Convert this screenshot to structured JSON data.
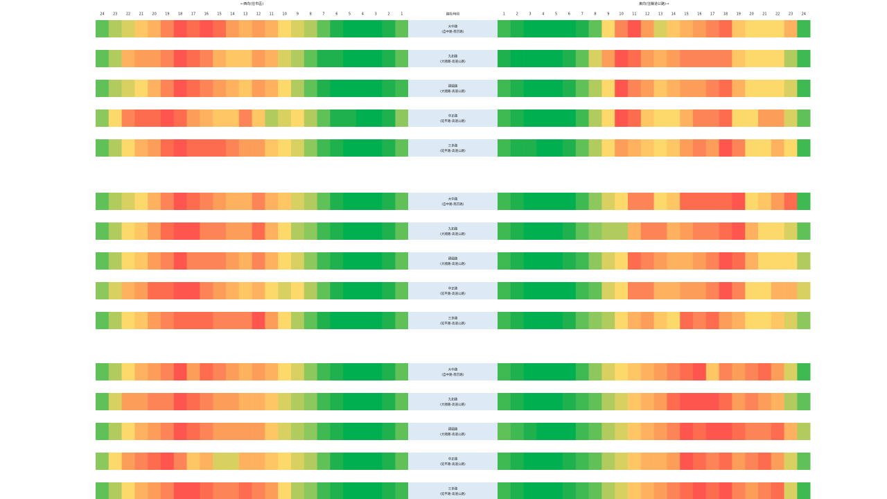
{
  "chart_data": {
    "type": "heatmap",
    "title": "",
    "left_header": "←西向(往市區)",
    "right_header": "東向(往縣道公路)→",
    "center_header": "路段/時段",
    "left_hours": [
      "24",
      "23",
      "22",
      "21",
      "20",
      "19",
      "18",
      "17",
      "16",
      "15",
      "14",
      "13",
      "12",
      "11",
      "10",
      "9",
      "8",
      "7",
      "6",
      "5",
      "4",
      "3",
      "2",
      "1"
    ],
    "right_hours": [
      "1",
      "2",
      "3",
      "4",
      "5",
      "6",
      "7",
      "8",
      "9",
      "10",
      "11",
      "12",
      "13",
      "14",
      "15",
      "16",
      "17",
      "18",
      "19",
      "20",
      "21",
      "22",
      "23",
      "24"
    ],
    "colors": {
      "0": "#00b050",
      "1": "#1fb14e",
      "2": "#3fba52",
      "3": "#5fc158",
      "4": "#8cc85e",
      "5": "#b2cb5e",
      "6": "#d9d062",
      "7": "#fdd86a",
      "8": "#fec664",
      "9": "#feb260",
      "10": "#fd9d5a",
      "11": "#fd8456",
      "12": "#fe6c50",
      "13": "#fe554e"
    },
    "groups": [
      {
        "rows": [
          {
            "name": "大中路",
            "sub": "(自中路-南京路)",
            "west": [
              3,
              5,
              6,
              8,
              9,
              11,
              13,
              12,
              13,
              12,
              10,
              9,
              10,
              9,
              7,
              6,
              5,
              3,
              1,
              0,
              0,
              0,
              1,
              3
            ],
            "east": [
              2,
              1,
              0,
              0,
              0,
              0,
              1,
              3,
              7,
              11,
              13,
              10,
              6,
              8,
              9,
              10,
              11,
              12,
              8,
              7,
              7,
              7,
              9,
              2
            ]
          },
          {
            "name": "九如路",
            "sub": "(大順路-高速公路)",
            "west": [
              3,
              5,
              9,
              10,
              10,
              11,
              13,
              12,
              11,
              9,
              8,
              8,
              10,
              9,
              6,
              5,
              3,
              1,
              1,
              0,
              0,
              0,
              1,
              3
            ],
            "east": [
              1,
              0,
              0,
              0,
              0,
              1,
              3,
              6,
              10,
              13,
              12,
              10,
              9,
              10,
              11,
              11,
              11,
              11,
              8,
              7,
              7,
              7,
              5,
              2
            ]
          },
          {
            "name": "建國路",
            "sub": "(大順路-高速公路)",
            "west": [
              3,
              5,
              6,
              7,
              9,
              11,
              13,
              12,
              11,
              10,
              9,
              8,
              10,
              9,
              7,
              5,
              3,
              1,
              0,
              0,
              0,
              0,
              1,
              2
            ],
            "east": [
              2,
              1,
              0,
              0,
              0,
              1,
              3,
              5,
              7,
              13,
              11,
              10,
              8,
              9,
              10,
              10,
              11,
              12,
              9,
              7,
              7,
              7,
              6,
              2
            ]
          },
          {
            "name": "中正路",
            "sub": "(延平路-高速公路)",
            "west": [
              4,
              7,
              11,
              12,
              12,
              13,
              12,
              10,
              9,
              8,
              8,
              11,
              8,
              5,
              6,
              7,
              5,
              3,
              1,
              1,
              0,
              0,
              1,
              4
            ],
            "east": [
              2,
              1,
              0,
              0,
              0,
              0,
              2,
              5,
              7,
              13,
              12,
              8,
              7,
              7,
              9,
              11,
              11,
              12,
              7,
              7,
              10,
              10,
              6,
              3
            ]
          },
          {
            "name": "三多路",
            "sub": "(延平路-高速公路)",
            "west": [
              3,
              5,
              7,
              9,
              10,
              12,
              13,
              12,
              12,
              12,
              11,
              10,
              10,
              8,
              7,
              6,
              4,
              2,
              1,
              0,
              0,
              0,
              1,
              3
            ],
            "east": [
              2,
              1,
              1,
              0,
              0,
              1,
              3,
              5,
              7,
              10,
              9,
              8,
              7,
              8,
              10,
              11,
              10,
              13,
              11,
              7,
              7,
              9,
              7,
              2
            ]
          }
        ]
      },
      {
        "rows": [
          {
            "name": "大中路",
            "sub": "(自中路-南京路)",
            "west": [
              3,
              5,
              6,
              7,
              9,
              11,
              13,
              12,
              11,
              10,
              9,
              9,
              11,
              9,
              8,
              6,
              5,
              3,
              1,
              0,
              0,
              0,
              1,
              3
            ],
            "east": [
              2,
              1,
              0,
              0,
              0,
              0,
              2,
              4,
              6,
              7,
              11,
              11,
              7,
              8,
              12,
              12,
              12,
              12,
              13,
              7,
              8,
              10,
              12,
              2
            ]
          },
          {
            "name": "九如路",
            "sub": "(大順路-高速公路)",
            "west": [
              3,
              5,
              7,
              8,
              10,
              12,
              13,
              13,
              11,
              11,
              10,
              10,
              12,
              9,
              7,
              5,
              4,
              2,
              1,
              0,
              0,
              0,
              1,
              3
            ],
            "east": [
              2,
              1,
              0,
              0,
              0,
              1,
              3,
              4,
              5,
              5,
              9,
              11,
              11,
              9,
              10,
              11,
              11,
              12,
              13,
              9,
              7,
              7,
              6,
              3
            ]
          },
          {
            "name": "建國路",
            "sub": "(大順路-高速公路)",
            "west": [
              3,
              5,
              7,
              8,
              10,
              11,
              13,
              11,
              11,
              11,
              10,
              9,
              11,
              9,
              7,
              6,
              4,
              2,
              1,
              0,
              0,
              0,
              1,
              3
            ],
            "east": [
              2,
              1,
              0,
              0,
              0,
              1,
              2,
              4,
              6,
              7,
              12,
              11,
              10,
              9,
              9,
              10,
              11,
              13,
              12,
              9,
              7,
              7,
              7,
              5
            ]
          },
          {
            "name": "中正路",
            "sub": "(延平路-高速公路)",
            "west": [
              4,
              6,
              9,
              10,
              12,
              12,
              13,
              13,
              11,
              10,
              9,
              8,
              9,
              7,
              6,
              7,
              5,
              3,
              1,
              0,
              0,
              0,
              1,
              3
            ],
            "east": [
              2,
              1,
              0,
              0,
              0,
              0,
              2,
              3,
              6,
              7,
              11,
              11,
              9,
              9,
              10,
              10,
              11,
              13,
              11,
              7,
              7,
              9,
              9,
              6
            ]
          },
          {
            "name": "三多路",
            "sub": "(延平路-高速公路)",
            "west": [
              3,
              5,
              7,
              8,
              10,
              11,
              12,
              12,
              12,
              11,
              11,
              11,
              13,
              10,
              7,
              5,
              3,
              1,
              0,
              0,
              0,
              0,
              1,
              3
            ],
            "east": [
              2,
              1,
              0,
              0,
              0,
              1,
              3,
              4,
              5,
              7,
              9,
              10,
              8,
              7,
              12,
              11,
              12,
              10,
              9,
              7,
              7,
              8,
              6,
              4
            ]
          }
        ]
      },
      {
        "rows": [
          {
            "name": "大中路",
            "sub": "(自中路-南京路)",
            "west": [
              3,
              5,
              7,
              9,
              10,
              11,
              13,
              10,
              12,
              11,
              10,
              9,
              10,
              9,
              7,
              6,
              4,
              2,
              1,
              0,
              0,
              0,
              1,
              3
            ],
            "east": [
              2,
              1,
              0,
              0,
              0,
              0,
              2,
              4,
              6,
              7,
              8,
              9,
              10,
              11,
              12,
              13,
              8,
              11,
              10,
              11,
              12,
              10,
              6,
              2
            ]
          },
          {
            "name": "九如路",
            "sub": "(大順路-高速公路)",
            "west": [
              3,
              6,
              10,
              10,
              11,
              11,
              13,
              12,
              11,
              10,
              10,
              9,
              9,
              8,
              6,
              5,
              4,
              2,
              1,
              0,
              0,
              0,
              1,
              3
            ],
            "east": [
              2,
              1,
              0,
              0,
              0,
              1,
              2,
              3,
              5,
              6,
              8,
              9,
              10,
              12,
              13,
              13,
              13,
              12,
              10,
              11,
              10,
              9,
              5,
              3
            ]
          },
          {
            "name": "建國路",
            "sub": "(大順路-高速公路)",
            "west": [
              3,
              5,
              7,
              9,
              10,
              11,
              13,
              12,
              11,
              10,
              10,
              10,
              10,
              8,
              6,
              5,
              4,
              2,
              1,
              0,
              0,
              0,
              1,
              3
            ],
            "east": [
              3,
              2,
              1,
              0,
              0,
              0,
              2,
              3,
              5,
              6,
              8,
              9,
              10,
              11,
              13,
              12,
              13,
              13,
              12,
              11,
              11,
              12,
              9,
              5
            ]
          },
          {
            "name": "中正路",
            "sub": "(延平路-高速公路)",
            "west": [
              4,
              7,
              10,
              11,
              12,
              13,
              11,
              8,
              9,
              6,
              6,
              9,
              9,
              8,
              7,
              6,
              5,
              3,
              1,
              0,
              0,
              0,
              1,
              3
            ],
            "east": [
              2,
              1,
              0,
              0,
              0,
              1,
              2,
              3,
              5,
              6,
              8,
              9,
              9,
              10,
              13,
              12,
              11,
              12,
              10,
              11,
              12,
              10,
              6,
              3
            ]
          },
          {
            "name": "三多路",
            "sub": "(延平路-高速公路)",
            "west": [
              3,
              5,
              7,
              9,
              10,
              11,
              13,
              13,
              12,
              11,
              11,
              12,
              11,
              10,
              7,
              5,
              4,
              2,
              1,
              0,
              0,
              0,
              1,
              2
            ],
            "east": [
              2,
              1,
              0,
              0,
              0,
              1,
              2,
              3,
              5,
              6,
              8,
              9,
              10,
              11,
              12,
              13,
              12,
              13,
              11,
              10,
              11,
              12,
              6,
              2
            ]
          }
        ]
      }
    ]
  }
}
